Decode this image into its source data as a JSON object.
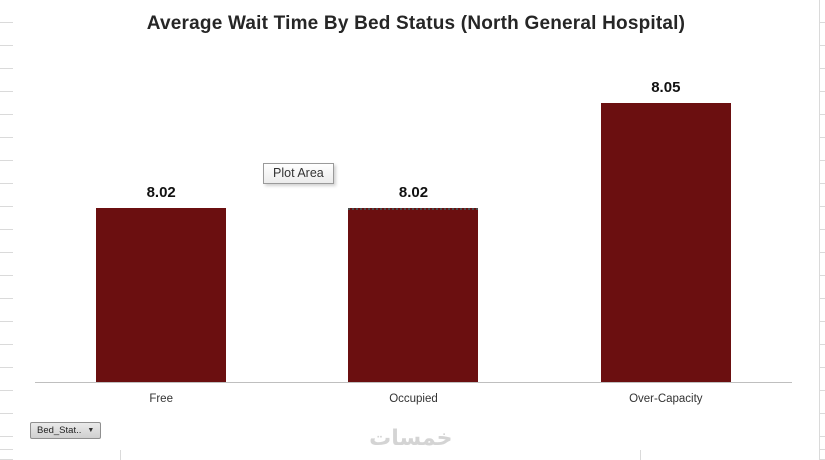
{
  "chart_data": {
    "type": "bar",
    "title": "Average Wait Time By Bed Status (North General Hospital)",
    "categories": [
      "Free",
      "Occupied",
      "Over-Capacity"
    ],
    "values": [
      8.02,
      8.02,
      8.05
    ],
    "data_labels": [
      "8.02",
      "8.02",
      "8.05"
    ],
    "ylim": [
      7.97,
      8.06
    ],
    "bar_color": "#6b0f10",
    "axis_line_color": "#bfbfbf",
    "grid": "off",
    "legend": "none"
  },
  "tooltip": {
    "label": "Plot Area"
  },
  "field_button": {
    "label": "Bed_Stat..",
    "dropdown_icon": "▼"
  },
  "watermark": {
    "text": "خمسات"
  }
}
